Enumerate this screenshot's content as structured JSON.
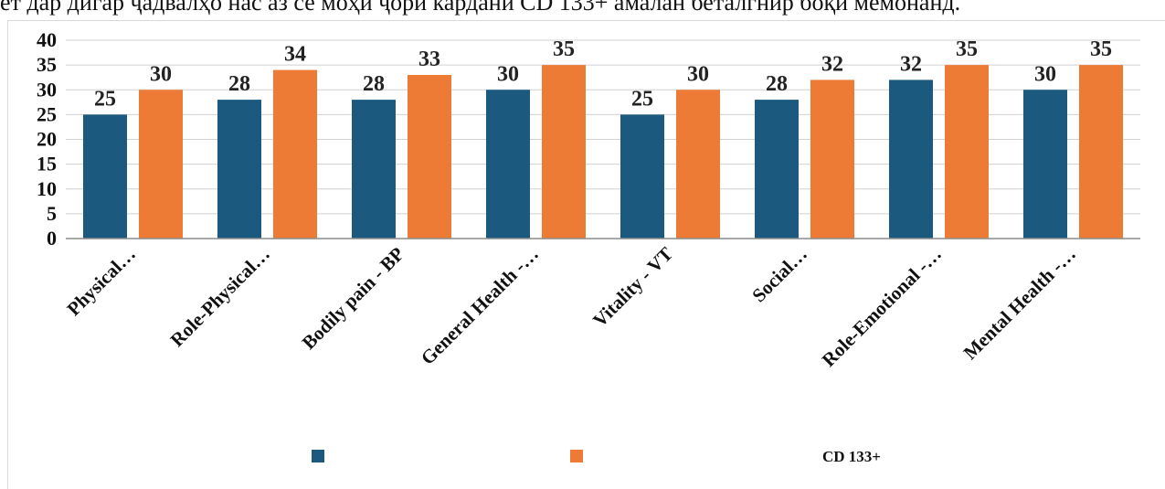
{
  "caption": "ет дар дигар ҷадвалҳо нас аз се моҳи ҷори кардани CD 133+ амалан беталгнир боқи мемонанд.",
  "colors": {
    "series1": "#1b5a7e",
    "series2": "#ed7a35",
    "grid": "#d0d0d0",
    "axis": "#8c8c8c"
  },
  "chart_data": {
    "type": "bar",
    "categories": [
      "Physical…",
      "Role-Physical…",
      "Bodily pain - BP",
      "General Health -…",
      "Vitality - VT",
      "Social…",
      "Role-Emotional -…",
      "Mental Health -…"
    ],
    "series": [
      {
        "name": "",
        "values": [
          25,
          28,
          28,
          30,
          25,
          28,
          32,
          30
        ]
      },
      {
        "name": "CD 133+",
        "values": [
          30,
          34,
          33,
          35,
          30,
          32,
          35,
          35
        ]
      }
    ],
    "yticks": [
      0,
      5,
      10,
      15,
      20,
      25,
      30,
      35,
      40
    ],
    "ylim": [
      0,
      40
    ],
    "grid": true,
    "legend_position": "bottom",
    "data_labels": true
  }
}
